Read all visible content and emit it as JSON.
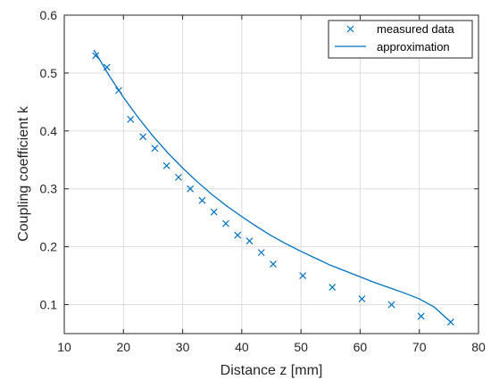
{
  "colors": {
    "series": "#0072BD",
    "axis": "#262626",
    "grid": "#dcdcdc"
  },
  "chart_data": {
    "type": "scatter",
    "title": "",
    "xlabel": "Distance z [mm]",
    "ylabel": "Coupling coefficient k",
    "xlim": [
      10,
      80
    ],
    "ylim": [
      0.05,
      0.6
    ],
    "xticks": [
      10,
      20,
      30,
      40,
      50,
      60,
      70,
      80
    ],
    "xtick_labels": [
      "10",
      "20",
      "30",
      "40",
      "50",
      "60",
      "70",
      "80"
    ],
    "yticks": [
      0.1,
      0.2,
      0.3,
      0.4,
      0.5,
      0.6
    ],
    "ytick_labels": [
      "0.1",
      "0.2",
      "0.3",
      "0.4",
      "0.5",
      "0.6"
    ],
    "grid": true,
    "legend_position": "top-right",
    "series": [
      {
        "name": "measured data",
        "marker": "x",
        "x": [
          15.3,
          17.2,
          19.2,
          21.2,
          23.3,
          25.3,
          27.3,
          29.3,
          31.3,
          33.3,
          35.3,
          37.3,
          39.3,
          41.3,
          43.3,
          45.3,
          50.3,
          55.3,
          60.3,
          65.3,
          70.3,
          75.3
        ],
        "y": [
          0.53,
          0.51,
          0.47,
          0.42,
          0.39,
          0.37,
          0.34,
          0.32,
          0.3,
          0.28,
          0.26,
          0.24,
          0.22,
          0.21,
          0.19,
          0.17,
          0.15,
          0.13,
          0.11,
          0.1,
          0.08,
          0.07
        ]
      },
      {
        "name": "approximation",
        "marker": "line",
        "x": [
          15,
          17.5,
          20,
          22.5,
          25,
          27.5,
          30,
          32.5,
          35,
          37.5,
          40,
          42.5,
          45,
          47.5,
          50,
          52.5,
          55,
          57.5,
          60,
          62.5,
          65,
          67.5,
          70,
          72.5,
          75.3
        ],
        "y": [
          0.54,
          0.497,
          0.458,
          0.423,
          0.391,
          0.362,
          0.336,
          0.312,
          0.29,
          0.27,
          0.252,
          0.235,
          0.219,
          0.205,
          0.192,
          0.18,
          0.168,
          0.158,
          0.148,
          0.138,
          0.129,
          0.12,
          0.11,
          0.096,
          0.07
        ]
      }
    ]
  }
}
